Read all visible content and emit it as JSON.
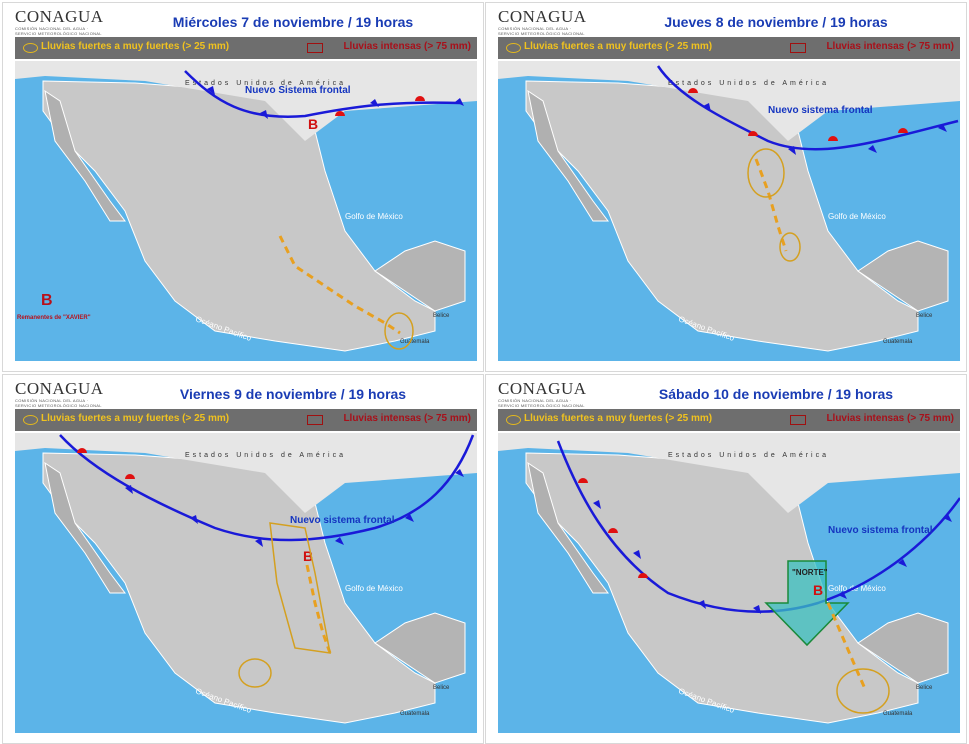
{
  "logo": {
    "name": "CONAGUA",
    "subtitle": "COMISIÓN NACIONAL DEL AGUA · SERVICIO METEOROLÓGICO NACIONAL"
  },
  "legend": {
    "strong_rain": "Lluvias fuertes a muy fuertes  (> 25 mm)",
    "intense_rain": "Lluvias intensas (> 75 mm)"
  },
  "colors": {
    "sea": "#5cb4e8",
    "land": "#c8c8c8",
    "front": "#1a1ad8",
    "warm_front": "#e01010",
    "title": "#1a3cb4",
    "rain_band": "#e8a020"
  },
  "map_labels": {
    "usa": "Estados Unidos de América",
    "gulf": "Golfo de México",
    "pacific": "Océano Pacífico",
    "belize": "Belice",
    "guatemala": "Guatemala"
  },
  "panels": [
    {
      "title": "Miércoles 7 de noviembre / 19 horas",
      "system": "Nuevo Sistema frontal",
      "low": "B",
      "remnant": "Remanentes de \"XAVIER\""
    },
    {
      "title": "Jueves 8 de noviembre / 19 horas",
      "system": "Nuevo sistema frontal"
    },
    {
      "title": "Viernes 9 de noviembre / 19 horas",
      "system": "Nuevo sistema frontal",
      "low": "B"
    },
    {
      "title": "Sábado 10 de noviembre / 19 horas",
      "system": "Nuevo sistema frontal",
      "low": "B",
      "norte": "\"NORTE\""
    }
  ]
}
